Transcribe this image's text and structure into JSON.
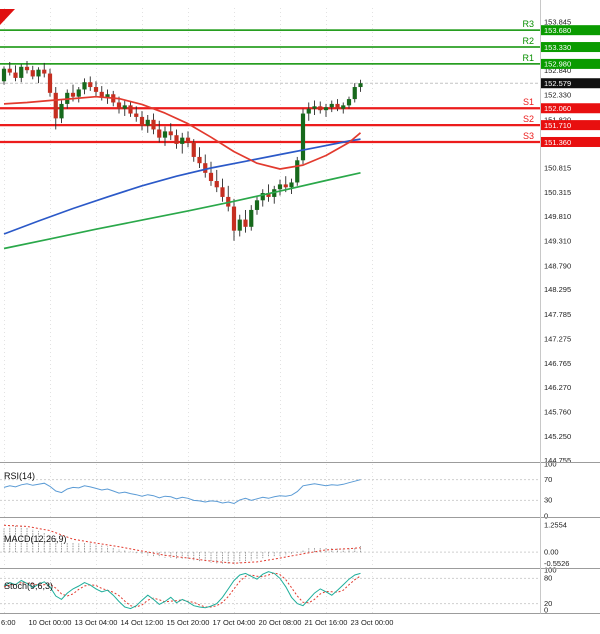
{
  "colors": {
    "bg": "#ffffff",
    "grid": "#e2e2e2",
    "separator": "#9c9c9c",
    "axis_divider": "#c8c8c8",
    "axis_text": "#1c1c1c",
    "candle_up": "#17691c",
    "candle_down": "#c52f21",
    "wick": "#2a2a2a",
    "resistance": "#089000",
    "resistance_badge": "#0a9b00",
    "support": "#ec1c1c",
    "support_badge": "#e80f0f",
    "current_badge": "#101010",
    "ma_red": "#e23a2e",
    "ma_blue": "#2b59c8",
    "ma_green": "#2aa84a",
    "rsi_line": "#5b9bd5",
    "macd_hist": "#9a9a9a",
    "macd_signal": "#e23a2e",
    "stoch_k": "#1fae9b",
    "stoch_d": "#e23a2e",
    "level_dotted": "#cfcfcf",
    "bid_line": "#c4c4c4",
    "corner_flag": "#e01010"
  },
  "chart_data": {
    "type": "candlestick",
    "main": {
      "y_range": [
        144.72,
        154.14
      ],
      "y_ticks": [
        153.845,
        152.84,
        152.33,
        151.82,
        150.815,
        150.315,
        149.81,
        149.31,
        148.79,
        148.295,
        147.785,
        147.275,
        146.765,
        146.27,
        145.76,
        145.25,
        144.755
      ],
      "sr_levels": [
        {
          "label": "R3",
          "price": 153.68,
          "kind": "resistance"
        },
        {
          "label": "R2",
          "price": 153.33,
          "kind": "resistance"
        },
        {
          "label": "R1",
          "price": 152.98,
          "kind": "resistance"
        },
        {
          "label": "S1",
          "price": 152.06,
          "kind": "support"
        },
        {
          "label": "S2",
          "price": 151.71,
          "kind": "support"
        },
        {
          "label": "S3",
          "price": 151.36,
          "kind": "support"
        }
      ],
      "current_price": 152.579,
      "candles": [
        [
          152.62,
          152.93,
          152.55,
          152.88
        ],
        [
          152.88,
          153.02,
          152.74,
          152.8
        ],
        [
          152.8,
          152.95,
          152.62,
          152.69
        ],
        [
          152.69,
          152.97,
          152.6,
          152.92
        ],
        [
          152.92,
          153.04,
          152.78,
          152.85
        ],
        [
          152.85,
          152.94,
          152.66,
          152.72
        ],
        [
          152.72,
          152.91,
          152.58,
          152.86
        ],
        [
          152.86,
          153.0,
          152.7,
          152.78
        ],
        [
          152.78,
          152.88,
          152.3,
          152.38
        ],
        [
          152.38,
          152.5,
          151.62,
          151.85
        ],
        [
          151.85,
          152.22,
          151.75,
          152.15
        ],
        [
          152.15,
          152.45,
          152.05,
          152.38
        ],
        [
          152.38,
          152.55,
          152.2,
          152.3
        ],
        [
          152.3,
          152.5,
          152.18,
          152.45
        ],
        [
          152.45,
          152.68,
          152.35,
          152.6
        ],
        [
          152.6,
          152.72,
          152.42,
          152.5
        ],
        [
          152.5,
          152.62,
          152.3,
          152.4
        ],
        [
          152.4,
          152.52,
          152.22,
          152.28
        ],
        [
          152.28,
          152.45,
          152.15,
          152.35
        ],
        [
          152.35,
          152.42,
          152.1,
          152.18
        ],
        [
          152.18,
          152.3,
          151.95,
          152.05
        ],
        [
          152.05,
          152.22,
          151.9,
          152.12
        ],
        [
          152.12,
          152.2,
          151.88,
          151.95
        ],
        [
          151.95,
          152.1,
          151.78,
          151.88
        ],
        [
          151.88,
          152.0,
          151.6,
          151.7
        ],
        [
          151.7,
          151.92,
          151.55,
          151.82
        ],
        [
          151.82,
          151.95,
          151.52,
          151.62
        ],
        [
          151.62,
          151.8,
          151.35,
          151.45
        ],
        [
          151.45,
          151.68,
          151.28,
          151.58
        ],
        [
          151.58,
          151.75,
          151.4,
          151.5
        ],
        [
          151.5,
          151.62,
          151.22,
          151.32
        ],
        [
          151.32,
          151.55,
          151.12,
          151.45
        ],
        [
          151.45,
          151.58,
          151.25,
          151.35
        ],
        [
          151.35,
          151.42,
          150.95,
          151.05
        ],
        [
          151.05,
          151.25,
          150.82,
          150.92
        ],
        [
          150.92,
          151.1,
          150.62,
          150.72
        ],
        [
          150.72,
          150.95,
          150.45,
          150.55
        ],
        [
          150.55,
          150.78,
          150.32,
          150.42
        ],
        [
          150.42,
          150.6,
          150.12,
          150.22
        ],
        [
          150.22,
          150.45,
          149.92,
          150.02
        ],
        [
          150.02,
          150.18,
          149.31,
          149.52
        ],
        [
          149.52,
          149.85,
          149.4,
          149.75
        ],
        [
          149.75,
          149.95,
          149.48,
          149.6
        ],
        [
          149.6,
          150.05,
          149.52,
          149.95
        ],
        [
          149.95,
          150.25,
          149.85,
          150.15
        ],
        [
          150.15,
          150.38,
          150.02,
          150.3
        ],
        [
          150.3,
          150.48,
          150.12,
          150.22
        ],
        [
          150.22,
          150.45,
          150.08,
          150.38
        ],
        [
          150.38,
          150.58,
          150.25,
          150.48
        ],
        [
          150.48,
          150.65,
          150.32,
          150.42
        ],
        [
          150.42,
          150.6,
          150.28,
          150.52
        ],
        [
          150.52,
          151.05,
          150.45,
          150.98
        ],
        [
          150.98,
          152.05,
          150.9,
          151.95
        ],
        [
          151.95,
          152.18,
          151.8,
          152.05
        ],
        [
          152.05,
          152.22,
          151.92,
          152.1
        ],
        [
          152.1,
          152.2,
          151.95,
          152.02
        ],
        [
          152.02,
          152.15,
          151.88,
          152.08
        ],
        [
          152.08,
          152.22,
          151.98,
          152.15
        ],
        [
          152.15,
          152.25,
          152.0,
          152.05
        ],
        [
          152.05,
          152.18,
          151.95,
          152.12
        ],
        [
          152.12,
          152.3,
          152.05,
          152.25
        ],
        [
          152.25,
          152.58,
          152.18,
          152.5
        ],
        [
          152.5,
          152.65,
          152.4,
          152.579
        ]
      ],
      "ma_red": [
        [
          0,
          152.15
        ],
        [
          4,
          152.18
        ],
        [
          8,
          152.22
        ],
        [
          12,
          152.26
        ],
        [
          16,
          152.3
        ],
        [
          20,
          152.26
        ],
        [
          24,
          152.14
        ],
        [
          28,
          151.96
        ],
        [
          32,
          151.74
        ],
        [
          36,
          151.46
        ],
        [
          40,
          151.16
        ],
        [
          44,
          150.92
        ],
        [
          48,
          150.8
        ],
        [
          52,
          150.88
        ],
        [
          56,
          151.08
        ],
        [
          60,
          151.35
        ],
        [
          62,
          151.55
        ]
      ],
      "ma_blue": [
        [
          0,
          149.45
        ],
        [
          6,
          149.72
        ],
        [
          12,
          149.98
        ],
        [
          18,
          150.22
        ],
        [
          24,
          150.45
        ],
        [
          30,
          150.65
        ],
        [
          36,
          150.82
        ],
        [
          42,
          150.96
        ],
        [
          48,
          151.1
        ],
        [
          54,
          151.24
        ],
        [
          60,
          151.38
        ],
        [
          62,
          151.42
        ]
      ],
      "ma_green": [
        [
          0,
          149.15
        ],
        [
          8,
          149.35
        ],
        [
          16,
          149.55
        ],
        [
          24,
          149.74
        ],
        [
          32,
          149.93
        ],
        [
          40,
          150.13
        ],
        [
          48,
          150.34
        ],
        [
          56,
          150.56
        ],
        [
          62,
          150.72
        ]
      ]
    },
    "x_axis": {
      "labels": [
        {
          "i": 0,
          "t": "6:00"
        },
        {
          "i": 8,
          "t": "10 Oct 00:00"
        },
        {
          "i": 16,
          "t": "13 Oct 04:00"
        },
        {
          "i": 24,
          "t": "14 Oct 12:00"
        },
        {
          "i": 32,
          "t": "15 Oct 20:00"
        },
        {
          "i": 40,
          "t": "17 Oct 04:00"
        },
        {
          "i": 48,
          "t": "20 Oct 08:00"
        },
        {
          "i": 56,
          "t": "21 Oct 16:00"
        },
        {
          "i": 64,
          "t": "23 Oct 00:00"
        }
      ]
    },
    "rsi": {
      "label": "RSI(14)",
      "range": [
        0,
        100
      ],
      "ticks": [
        100,
        70,
        30,
        0
      ],
      "levels": [
        70,
        30
      ],
      "values": [
        55,
        58,
        56,
        60,
        62,
        59,
        61,
        63,
        57,
        48,
        45,
        52,
        55,
        54,
        58,
        56,
        53,
        50,
        52,
        48,
        44,
        46,
        43,
        41,
        38,
        41,
        39,
        35,
        38,
        37,
        33,
        36,
        34,
        30,
        29,
        27,
        29,
        28,
        25,
        27,
        24,
        31,
        34,
        30,
        33,
        36,
        34,
        37,
        39,
        38,
        40,
        47,
        58,
        60,
        62,
        60,
        58,
        60,
        59,
        61,
        64,
        67,
        70
      ]
    },
    "macd": {
      "label": "MACD(12,26,9)",
      "range": [
        -0.65,
        1.45
      ],
      "ticks": [
        {
          "v": 1.2554,
          "t": "1.2554"
        },
        {
          "v": 0,
          "t": "0.00"
        },
        {
          "v": -0.5526,
          "t": "-0.5526"
        }
      ],
      "histogram": [
        1.1,
        1.18,
        1.22,
        1.2,
        1.14,
        1.06,
        0.98,
        0.92,
        0.82,
        0.65,
        0.52,
        0.46,
        0.42,
        0.4,
        0.42,
        0.4,
        0.36,
        0.3,
        0.26,
        0.2,
        0.13,
        0.08,
        0.02,
        -0.05,
        -0.12,
        -0.16,
        -0.19,
        -0.24,
        -0.27,
        -0.27,
        -0.3,
        -0.31,
        -0.33,
        -0.38,
        -0.43,
        -0.47,
        -0.5,
        -0.53,
        -0.55,
        -0.55,
        -0.54,
        -0.5,
        -0.45,
        -0.39,
        -0.33,
        -0.28,
        -0.24,
        -0.2,
        -0.17,
        -0.15,
        -0.11,
        -0.04,
        0.1,
        0.18,
        0.22,
        0.22,
        0.2,
        0.18,
        0.16,
        0.15,
        0.17,
        0.22,
        0.28
      ],
      "signal": [
        [
          0,
          1.25
        ],
        [
          4,
          1.2
        ],
        [
          8,
          1.0
        ],
        [
          12,
          0.6
        ],
        [
          16,
          0.42
        ],
        [
          20,
          0.25
        ],
        [
          24,
          0.05
        ],
        [
          28,
          -0.15
        ],
        [
          32,
          -0.28
        ],
        [
          36,
          -0.42
        ],
        [
          40,
          -0.52
        ],
        [
          44,
          -0.46
        ],
        [
          48,
          -0.28
        ],
        [
          52,
          -0.08
        ],
        [
          56,
          0.1
        ],
        [
          60,
          0.16
        ],
        [
          62,
          0.2
        ]
      ]
    },
    "stoch": {
      "label": "Stoch(9,6,3)",
      "range": [
        0,
        100
      ],
      "ticks": [
        100,
        80,
        20,
        0
      ],
      "levels": [
        80,
        20
      ],
      "k": [
        62,
        70,
        65,
        75,
        68,
        58,
        66,
        72,
        60,
        38,
        30,
        45,
        55,
        62,
        70,
        64,
        55,
        48,
        52,
        40,
        25,
        12,
        8,
        15,
        28,
        40,
        30,
        18,
        25,
        35,
        22,
        30,
        24,
        15,
        12,
        10,
        14,
        20,
        35,
        55,
        75,
        88,
        92,
        85,
        78,
        90,
        96,
        92,
        80,
        60,
        35,
        20,
        15,
        30,
        45,
        55,
        48,
        40,
        52,
        65,
        78,
        88,
        92
      ],
      "d": [
        60,
        64,
        66,
        70,
        69,
        67,
        64,
        65,
        66,
        57,
        43,
        38,
        43,
        54,
        62,
        65,
        63,
        56,
        52,
        47,
        39,
        26,
        15,
        12,
        17,
        28,
        33,
        29,
        24,
        26,
        27,
        29,
        25,
        23,
        17,
        12,
        12,
        15,
        23,
        37,
        55,
        73,
        85,
        88,
        85,
        84,
        88,
        93,
        89,
        77,
        58,
        38,
        23,
        22,
        30,
        43,
        49,
        48,
        47,
        52,
        65,
        77,
        86
      ]
    }
  }
}
